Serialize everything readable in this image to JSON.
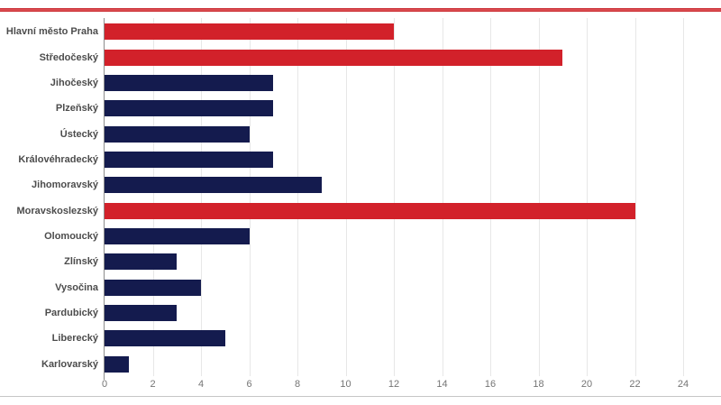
{
  "page": {
    "background": "#ffffff",
    "top_rule_color": "#c4232b",
    "top_rule_mid_color": "#e2595c",
    "bottom_rule_color": "#c6c6c6"
  },
  "chart_data": {
    "type": "bar",
    "orientation": "horizontal",
    "title": "",
    "xlabel": "",
    "ylabel": "",
    "categories": [
      "Hlavní město Praha",
      "Středočeský",
      "Jihočeský",
      "Plzeňský",
      "Ústecký",
      "Královéhradecký",
      "Jihomoravský",
      "Moravskoslezský",
      "Olomoucký",
      "Zlínský",
      "Vysočina",
      "Pardubický",
      "Liberecký",
      "Karlovarský"
    ],
    "values": [
      12,
      19,
      7,
      7,
      6,
      7,
      9,
      22,
      6,
      3,
      4,
      3,
      5,
      1
    ],
    "bar_colors": [
      "#d2212a",
      "#d2212a",
      "#141b4e",
      "#141b4e",
      "#141b4e",
      "#141b4e",
      "#141b4e",
      "#d2212a",
      "#141b4e",
      "#141b4e",
      "#141b4e",
      "#141b4e",
      "#141b4e",
      "#141b4e"
    ],
    "highlight_color": "#d2212a",
    "default_color": "#141b4e",
    "x_ticks": [
      0,
      2,
      4,
      6,
      8,
      10,
      12,
      14,
      16,
      18,
      20,
      22,
      24
    ],
    "xlim": [
      0,
      24
    ],
    "grid": true,
    "legend": "none",
    "label_color": "#4c4c4c",
    "tick_color": "#757575",
    "gridline_color": "#e7e7e7",
    "axis_line_color": "#8c8c8c"
  }
}
